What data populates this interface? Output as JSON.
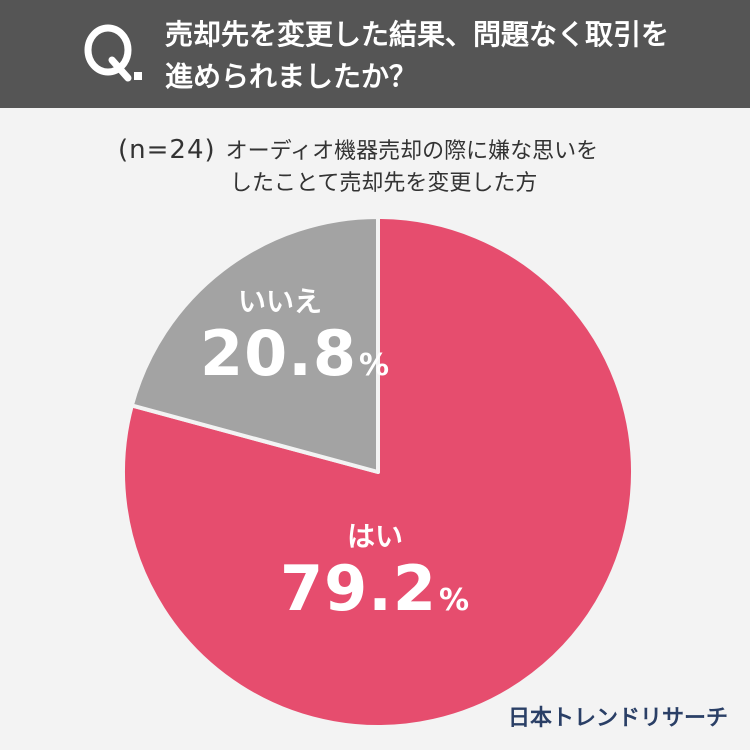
{
  "header": {
    "q_letter": "Q.",
    "question_line1": "売却先を変更した結果、問題なく取引を",
    "question_line2": "進められましたか？"
  },
  "subtitle": {
    "n_label": "(n=24)",
    "line1": "オーディオ機器売却の際に嫌な思いを",
    "line2": "したことて売却先を変更した方"
  },
  "chart_data": {
    "type": "pie",
    "start": "12 o'clock",
    "direction": "clockwise",
    "slices": [
      {
        "label": "はい",
        "value": 79.2,
        "display": "79.2",
        "unit": "%",
        "color": "#e64d6e"
      },
      {
        "label": "いいえ",
        "value": 20.8,
        "display": "20.8",
        "unit": "%",
        "color": "#a3a3a3"
      }
    ]
  },
  "colors": {
    "header_bg": "#555555",
    "page_bg": "#f3f3f3",
    "slice_border": "#f3f3f3"
  },
  "brand": {
    "name": "日本トレンドリサーチ"
  }
}
